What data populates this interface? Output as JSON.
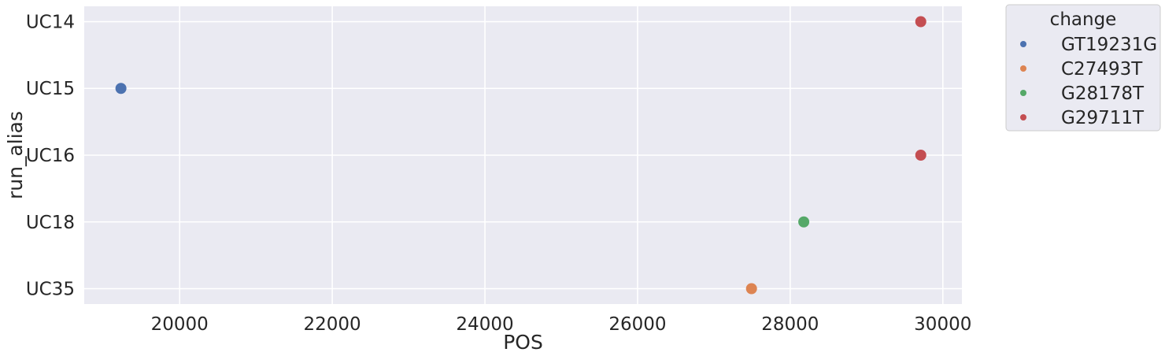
{
  "chart_data": {
    "type": "scatter",
    "xlabel": "POS",
    "ylabel": "run_alias",
    "xlim": [
      18750,
      30250
    ],
    "x_ticks": [
      20000,
      22000,
      24000,
      26000,
      28000,
      30000
    ],
    "y_categories": [
      "UC14",
      "UC15",
      "UC16",
      "UC18",
      "UC35"
    ],
    "grid": true,
    "legend": {
      "title": "change",
      "placement": "outside-right-top",
      "entries": [
        {
          "name": "GT19231G",
          "color": "#4c72b0"
        },
        {
          "name": "C27493T",
          "color": "#dd8452"
        },
        {
          "name": "G28178T",
          "color": "#55a868"
        },
        {
          "name": "G29711T",
          "color": "#c44e52"
        }
      ]
    },
    "series": [
      {
        "name": "GT19231G",
        "color": "#4c72b0",
        "points": [
          {
            "x": 19231,
            "y": "UC15"
          }
        ]
      },
      {
        "name": "C27493T",
        "color": "#dd8452",
        "points": [
          {
            "x": 27493,
            "y": "UC35"
          }
        ]
      },
      {
        "name": "G28178T",
        "color": "#55a868",
        "points": [
          {
            "x": 28178,
            "y": "UC18"
          }
        ]
      },
      {
        "name": "G29711T",
        "color": "#c44e52",
        "points": [
          {
            "x": 29711,
            "y": "UC14"
          },
          {
            "x": 29711,
            "y": "UC16"
          }
        ]
      }
    ]
  },
  "colors": {
    "plot_background": "#eaeaf2",
    "grid": "#ffffff",
    "text": "#262626"
  }
}
